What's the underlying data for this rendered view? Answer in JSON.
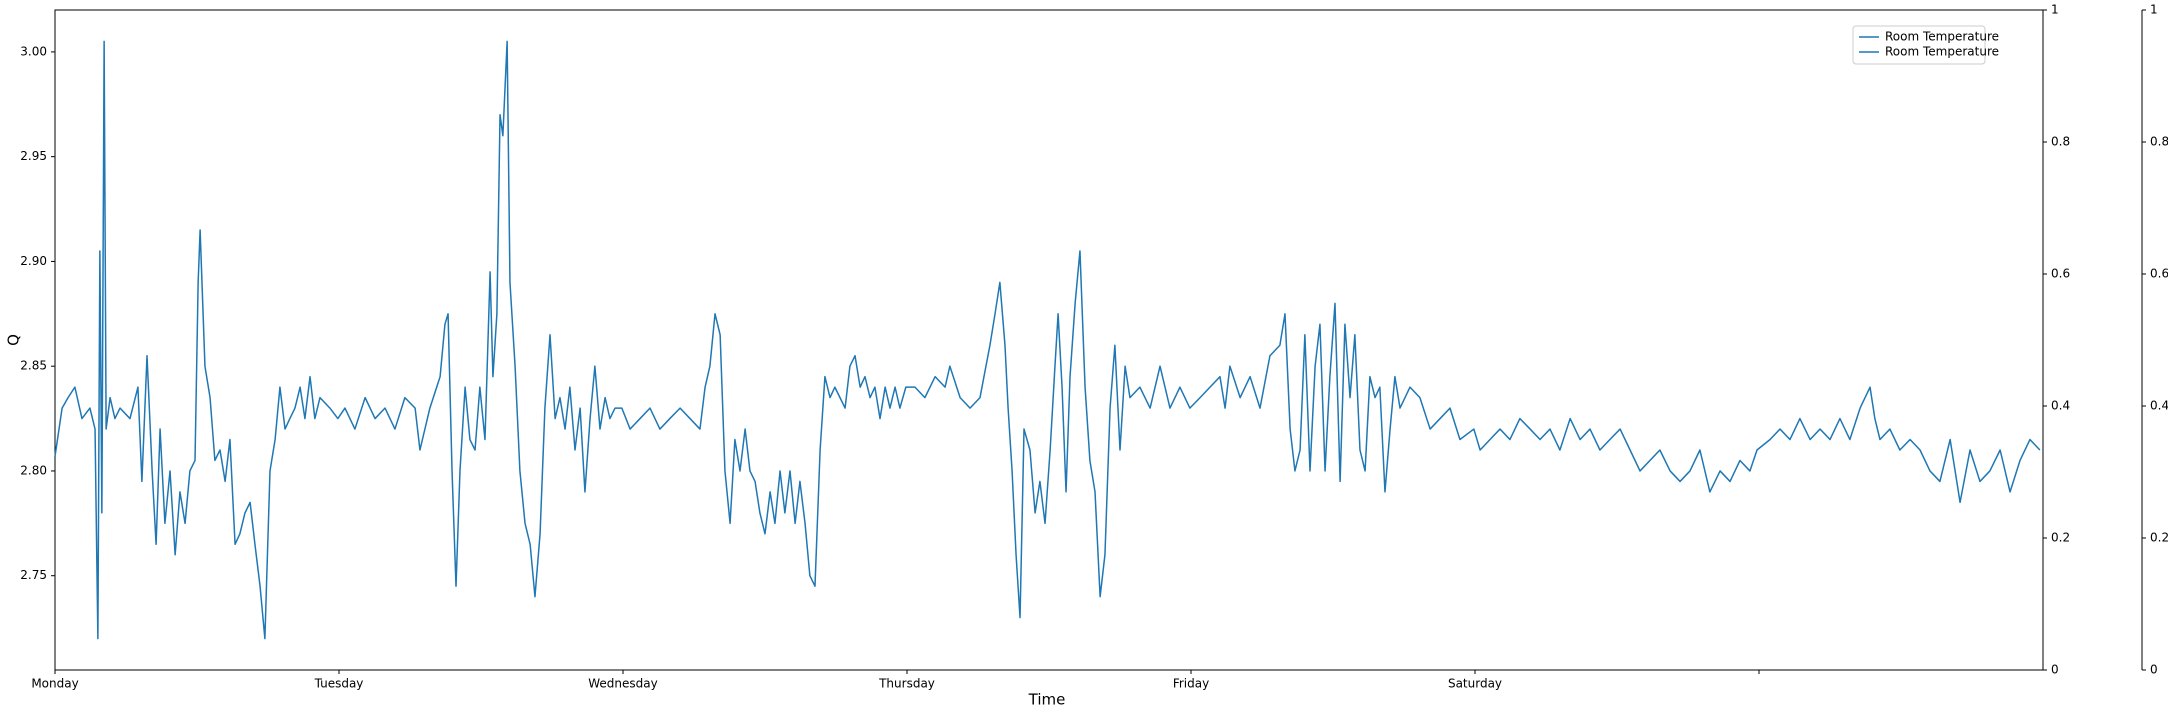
{
  "chart_data": {
    "type": "line",
    "x_label": "Time",
    "y_label": "Q",
    "x": [
      0,
      0.025,
      0.046,
      0.07,
      0.095,
      0.123,
      0.141,
      0.151,
      0.158,
      0.165,
      0.173,
      0.18,
      0.194,
      0.211,
      0.229,
      0.264,
      0.292,
      0.306,
      0.324,
      0.342,
      0.356,
      0.37,
      0.387,
      0.405,
      0.423,
      0.44,
      0.458,
      0.475,
      0.493,
      0.504,
      0.511,
      0.528,
      0.546,
      0.563,
      0.581,
      0.599,
      0.616,
      0.634,
      0.651,
      0.669,
      0.687,
      0.704,
      0.722,
      0.739,
      0.757,
      0.775,
      0.792,
      0.81,
      0.827,
      0.845,
      0.863,
      0.88,
      0.898,
      0.915,
      0.933,
      0.968,
      0.996,
      1.021,
      1.056,
      1.092,
      1.127,
      1.162,
      1.197,
      1.232,
      1.268,
      1.285,
      1.32,
      1.356,
      1.373,
      1.384,
      1.398,
      1.412,
      1.426,
      1.444,
      1.461,
      1.479,
      1.496,
      1.514,
      1.532,
      1.542,
      1.556,
      1.567,
      1.577,
      1.592,
      1.602,
      1.62,
      1.637,
      1.655,
      1.673,
      1.69,
      1.708,
      1.725,
      1.743,
      1.761,
      1.778,
      1.796,
      1.813,
      1.831,
      1.849,
      1.866,
      1.884,
      1.901,
      1.919,
      1.937,
      1.954,
      1.972,
      1.996,
      2.025,
      2.06,
      2.095,
      2.13,
      2.165,
      2.201,
      2.236,
      2.271,
      2.289,
      2.306,
      2.324,
      2.342,
      2.359,
      2.377,
      2.394,
      2.412,
      2.43,
      2.447,
      2.465,
      2.482,
      2.5,
      2.518,
      2.535,
      2.553,
      2.57,
      2.588,
      2.606,
      2.623,
      2.641,
      2.658,
      2.676,
      2.694,
      2.711,
      2.729,
      2.746,
      2.764,
      2.782,
      2.799,
      2.817,
      2.835,
      2.852,
      2.87,
      2.887,
      2.905,
      2.923,
      2.94,
      2.958,
      2.975,
      2.996,
      3.028,
      3.063,
      3.099,
      3.134,
      3.151,
      3.187,
      3.222,
      3.257,
      3.292,
      3.31,
      3.327,
      3.345,
      3.356,
      3.37,
      3.384,
      3.398,
      3.412,
      3.433,
      3.451,
      3.468,
      3.486,
      3.504,
      3.521,
      3.532,
      3.546,
      3.56,
      3.574,
      3.592,
      3.609,
      3.627,
      3.644,
      3.662,
      3.68,
      3.697,
      3.715,
      3.732,
      3.75,
      3.768,
      3.785,
      3.82,
      3.856,
      3.891,
      3.926,
      3.961,
      3.996,
      4.032,
      4.067,
      4.102,
      4.12,
      4.137,
      4.173,
      4.208,
      4.243,
      4.278,
      4.313,
      4.331,
      4.349,
      4.366,
      4.384,
      4.401,
      4.419,
      4.437,
      4.454,
      4.472,
      4.489,
      4.507,
      4.525,
      4.542,
      4.56,
      4.577,
      4.595,
      4.613,
      4.63,
      4.648,
      4.665,
      4.683,
      4.701,
      4.718,
      4.736,
      4.771,
      4.806,
      4.842,
      4.877,
      4.912,
      4.947,
      4.996,
      5.018,
      5.053,
      5.088,
      5.123,
      5.158,
      5.194,
      5.229,
      5.264,
      5.299,
      5.335,
      5.37,
      5.405,
      5.44,
      5.475,
      5.511,
      5.546,
      5.581,
      5.616,
      5.651,
      5.687,
      5.722,
      5.757,
      5.792,
      5.827,
      5.863,
      5.898,
      5.933,
      5.968,
      5.993,
      6.039,
      6.074,
      6.109,
      6.144,
      6.18,
      6.215,
      6.25,
      6.285,
      6.32,
      6.356,
      6.391,
      6.408,
      6.426,
      6.461,
      6.496,
      6.532,
      6.567,
      6.602,
      6.637,
      6.673,
      6.708,
      6.743,
      6.778,
      6.813,
      6.849,
      6.884,
      6.919,
      6.954,
      6.989
    ],
    "series": [
      {
        "name": "Room Temperature",
        "color": "#1f77b4",
        "values": [
          2.807,
          2.83,
          2.835,
          2.84,
          2.825,
          2.83,
          2.82,
          2.72,
          2.905,
          2.78,
          3.005,
          2.82,
          2.835,
          2.825,
          2.83,
          2.825,
          2.84,
          2.795,
          2.855,
          2.8,
          2.765,
          2.82,
          2.775,
          2.8,
          2.76,
          2.79,
          2.775,
          2.8,
          2.805,
          2.89,
          2.915,
          2.85,
          2.835,
          2.805,
          2.81,
          2.795,
          2.815,
          2.765,
          2.77,
          2.78,
          2.785,
          2.765,
          2.745,
          2.72,
          2.8,
          2.815,
          2.84,
          2.82,
          2.825,
          2.83,
          2.84,
          2.825,
          2.845,
          2.825,
          2.835,
          2.83,
          2.825,
          2.83,
          2.82,
          2.835,
          2.825,
          2.83,
          2.82,
          2.835,
          2.83,
          2.81,
          2.83,
          2.845,
          2.87,
          2.875,
          2.8,
          2.745,
          2.8,
          2.84,
          2.815,
          2.81,
          2.84,
          2.815,
          2.895,
          2.845,
          2.875,
          2.97,
          2.96,
          3.005,
          2.89,
          2.85,
          2.8,
          2.775,
          2.765,
          2.74,
          2.77,
          2.83,
          2.865,
          2.825,
          2.835,
          2.82,
          2.84,
          2.81,
          2.83,
          2.79,
          2.825,
          2.85,
          2.82,
          2.835,
          2.825,
          2.83,
          2.83,
          2.82,
          2.825,
          2.83,
          2.82,
          2.825,
          2.83,
          2.825,
          2.82,
          2.84,
          2.85,
          2.875,
          2.865,
          2.8,
          2.775,
          2.815,
          2.8,
          2.82,
          2.8,
          2.795,
          2.78,
          2.77,
          2.79,
          2.775,
          2.8,
          2.78,
          2.8,
          2.775,
          2.795,
          2.775,
          2.75,
          2.745,
          2.81,
          2.845,
          2.835,
          2.84,
          2.835,
          2.83,
          2.85,
          2.855,
          2.84,
          2.845,
          2.835,
          2.84,
          2.825,
          2.84,
          2.83,
          2.84,
          2.83,
          2.84,
          2.84,
          2.835,
          2.845,
          2.84,
          2.85,
          2.835,
          2.83,
          2.835,
          2.86,
          2.875,
          2.89,
          2.86,
          2.83,
          2.8,
          2.76,
          2.73,
          2.82,
          2.81,
          2.78,
          2.795,
          2.775,
          2.81,
          2.85,
          2.875,
          2.84,
          2.79,
          2.845,
          2.88,
          2.905,
          2.84,
          2.805,
          2.79,
          2.74,
          2.76,
          2.83,
          2.86,
          2.81,
          2.85,
          2.835,
          2.84,
          2.83,
          2.85,
          2.83,
          2.84,
          2.83,
          2.835,
          2.84,
          2.845,
          2.83,
          2.85,
          2.835,
          2.845,
          2.83,
          2.855,
          2.86,
          2.875,
          2.82,
          2.8,
          2.81,
          2.865,
          2.8,
          2.85,
          2.87,
          2.8,
          2.845,
          2.88,
          2.795,
          2.87,
          2.835,
          2.865,
          2.81,
          2.8,
          2.845,
          2.835,
          2.84,
          2.79,
          2.82,
          2.845,
          2.83,
          2.84,
          2.835,
          2.82,
          2.825,
          2.83,
          2.815,
          2.82,
          2.81,
          2.815,
          2.82,
          2.815,
          2.825,
          2.82,
          2.815,
          2.82,
          2.81,
          2.825,
          2.815,
          2.82,
          2.81,
          2.815,
          2.82,
          2.81,
          2.8,
          2.805,
          2.81,
          2.8,
          2.795,
          2.8,
          2.81,
          2.79,
          2.8,
          2.795,
          2.805,
          2.8,
          2.81,
          2.815,
          2.82,
          2.815,
          2.825,
          2.815,
          2.82,
          2.815,
          2.825,
          2.815,
          2.83,
          2.84,
          2.825,
          2.815,
          2.82,
          2.81,
          2.815,
          2.81,
          2.8,
          2.795,
          2.815,
          2.785,
          2.81,
          2.795,
          2.8,
          2.81,
          2.79,
          2.805,
          2.815,
          2.81
        ]
      },
      {
        "name": "Room Temperature",
        "color": "#1f77b4",
        "axis": "y2"
      }
    ],
    "xlim": [
      0,
      7
    ],
    "xticks": [
      {
        "value": 0,
        "label": "Monday"
      },
      {
        "value": 1,
        "label": "Tuesday"
      },
      {
        "value": 2,
        "label": "Wednesday"
      },
      {
        "value": 3,
        "label": "Thursday"
      },
      {
        "value": 4,
        "label": "Friday"
      },
      {
        "value": 5,
        "label": "Saturday"
      },
      {
        "value": 6,
        "label": null
      }
    ],
    "ylim": [
      2.705,
      3.02
    ],
    "yticks": [
      2.75,
      {
        "value": 2.8,
        "label": "2.80"
      },
      2.85,
      {
        "value": 2.9,
        "label": "2.90"
      },
      2.95,
      {
        "value": 3,
        "label": "3.00"
      }
    ],
    "y2lim": [
      0,
      1
    ],
    "y2ticks": [
      0,
      0.2,
      0.4,
      0.6,
      0.8,
      1
    ],
    "y3lim": [
      0,
      1
    ],
    "y3ticks": [
      0,
      0.2,
      0.4,
      0.6,
      0.8,
      1
    ],
    "legend": "upper right",
    "grid": false
  }
}
